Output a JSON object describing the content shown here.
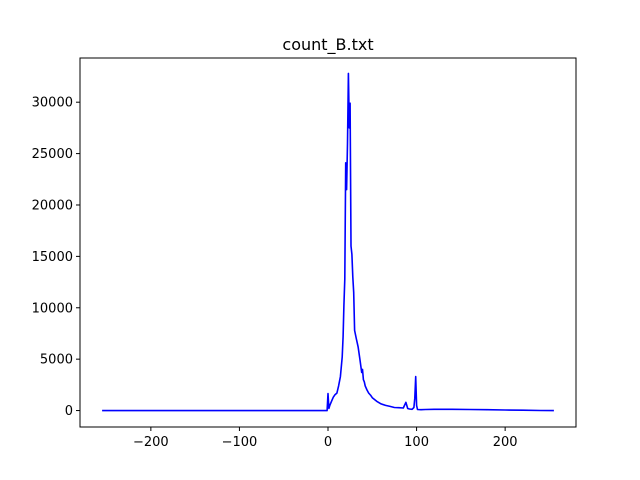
{
  "chart_data": {
    "type": "line",
    "title": "count_B.txt",
    "xlabel": "",
    "ylabel": "",
    "xlim": [
      -280,
      280
    ],
    "ylim": [
      -1600,
      34300
    ],
    "xticks": [
      -200,
      -100,
      0,
      100,
      200
    ],
    "xtick_labels": [
      "−200",
      "−100",
      "0",
      "100",
      "200"
    ],
    "yticks": [
      0,
      5000,
      10000,
      15000,
      20000,
      25000,
      30000
    ],
    "ytick_labels": [
      "0",
      "5000",
      "10000",
      "15000",
      "20000",
      "25000",
      "30000"
    ],
    "grid": false,
    "legend": "none",
    "series": [
      {
        "color": "#0000ff",
        "x": [
          -255,
          -200,
          -100,
          -10,
          -1,
          0,
          1,
          2,
          4,
          6,
          8,
          10,
          12,
          14,
          16,
          17,
          18,
          19,
          20,
          21,
          22,
          23,
          24,
          25,
          26,
          27,
          28,
          29,
          30,
          32,
          34,
          36,
          38,
          39,
          40,
          41,
          42,
          44,
          46,
          48,
          50,
          55,
          60,
          65,
          70,
          75,
          80,
          85,
          88,
          90,
          92,
          95,
          97,
          98,
          99,
          100,
          101,
          105,
          110,
          120,
          140,
          160,
          180,
          200,
          220,
          240,
          255
        ],
        "y": [
          0,
          0,
          0,
          0,
          0,
          1650,
          200,
          500,
          900,
          1300,
          1550,
          1700,
          2400,
          3300,
          5200,
          7200,
          10200,
          12800,
          24100,
          21500,
          26000,
          32800,
          27500,
          29900,
          16000,
          15200,
          13000,
          11500,
          7800,
          7000,
          6200,
          5000,
          3700,
          4000,
          3000,
          2800,
          2400,
          2000,
          1700,
          1500,
          1250,
          900,
          650,
          500,
          400,
          300,
          280,
          250,
          800,
          200,
          150,
          120,
          300,
          1200,
          3300,
          500,
          100,
          80,
          100,
          120,
          120,
          100,
          80,
          50,
          30,
          10,
          0
        ]
      }
    ]
  }
}
